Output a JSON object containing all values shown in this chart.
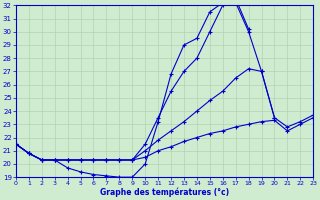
{
  "xlabel": "Graphe des températures (°c)",
  "xlim": [
    0,
    23
  ],
  "ylim": [
    19,
    32
  ],
  "xticks": [
    0,
    1,
    2,
    3,
    4,
    5,
    6,
    7,
    8,
    9,
    10,
    11,
    12,
    13,
    14,
    15,
    16,
    17,
    18,
    19,
    20,
    21,
    22,
    23
  ],
  "yticks": [
    19,
    20,
    21,
    22,
    23,
    24,
    25,
    26,
    27,
    28,
    29,
    30,
    31,
    32
  ],
  "bg_color": "#d0ecd0",
  "line_color": "#0000cc",
  "grid_color": "#b0d4b0",
  "curves": [
    {
      "x": [
        0,
        1,
        2,
        3,
        4,
        5,
        6,
        7,
        8,
        9,
        10,
        11,
        12,
        13,
        14,
        15,
        16,
        17,
        18,
        19,
        20,
        21,
        22,
        23
      ],
      "y": [
        21.5,
        20.8,
        20.3,
        20.3,
        19.7,
        19.4,
        19.2,
        19.1,
        19.0,
        19.0,
        20.0,
        23.2,
        26.8,
        29.0,
        29.5,
        31.5,
        32.2,
        32.5,
        30.2,
        null,
        null,
        null,
        null,
        null
      ]
    },
    {
      "x": [
        0,
        1,
        2,
        3,
        4,
        5,
        6,
        7,
        8,
        9,
        10,
        11,
        12,
        13,
        14,
        15,
        16,
        17,
        18,
        19,
        20,
        21,
        22,
        23
      ],
      "y": [
        21.5,
        20.8,
        20.3,
        20.3,
        20.3,
        20.3,
        20.3,
        20.3,
        20.3,
        20.3,
        21.5,
        23.5,
        25.5,
        27.0,
        28.0,
        30.0,
        32.0,
        32.2,
        30.0,
        27.0,
        23.5,
        null,
        null,
        null
      ]
    },
    {
      "x": [
        0,
        1,
        2,
        3,
        4,
        5,
        6,
        7,
        8,
        9,
        10,
        11,
        12,
        13,
        14,
        15,
        16,
        17,
        18,
        19,
        20,
        21,
        22,
        23
      ],
      "y": [
        21.5,
        20.8,
        20.3,
        20.3,
        20.3,
        20.3,
        20.3,
        20.3,
        20.3,
        20.3,
        21.0,
        21.8,
        22.5,
        23.2,
        24.0,
        24.8,
        25.5,
        26.5,
        27.2,
        27.0,
        23.5,
        22.8,
        23.2,
        23.7
      ]
    },
    {
      "x": [
        0,
        1,
        2,
        3,
        4,
        5,
        6,
        7,
        8,
        9,
        10,
        11,
        12,
        13,
        14,
        15,
        16,
        17,
        18,
        19,
        20,
        21,
        22,
        23
      ],
      "y": [
        21.5,
        20.8,
        20.3,
        20.3,
        20.3,
        20.3,
        20.3,
        20.3,
        20.3,
        20.3,
        20.5,
        21.0,
        21.3,
        21.7,
        22.0,
        22.3,
        22.5,
        22.8,
        23.0,
        23.2,
        23.3,
        22.5,
        23.0,
        23.5
      ]
    }
  ]
}
